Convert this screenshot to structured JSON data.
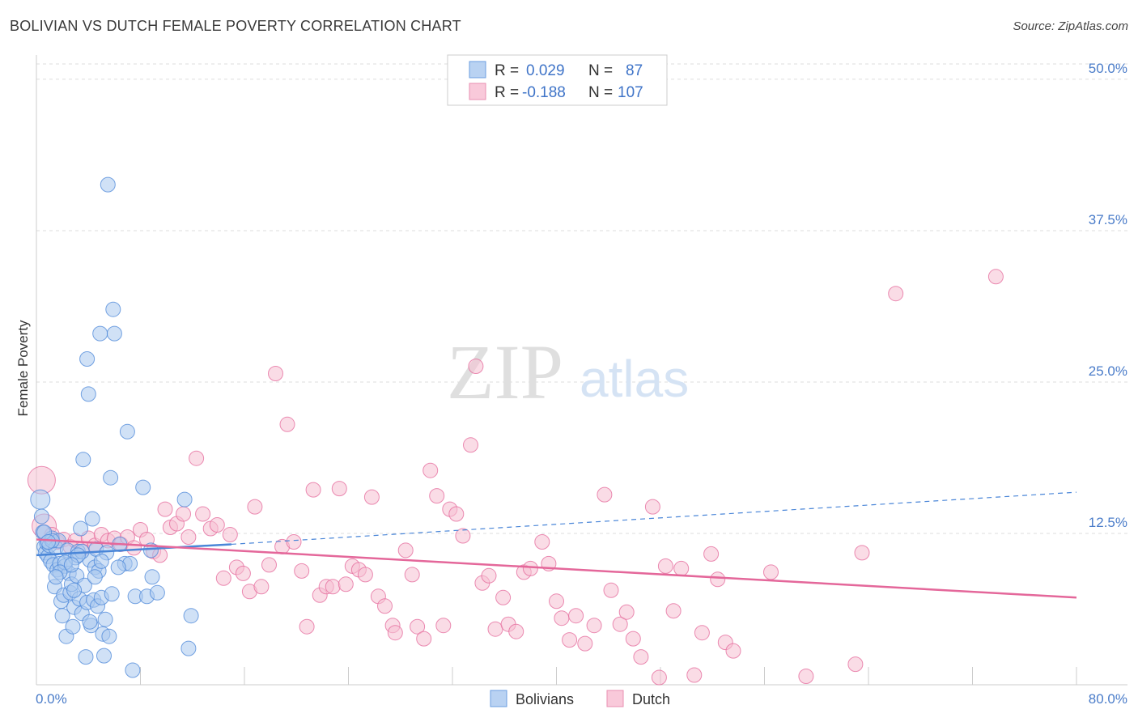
{
  "title": "BOLIVIAN VS DUTCH FEMALE POVERTY CORRELATION CHART",
  "source": "Source: ZipAtlas.com",
  "watermark": {
    "part1": "ZIP",
    "part2": "atlas"
  },
  "colors": {
    "bolivians": "#4a86d8",
    "bolivians_fill": "#a9c9ef",
    "dutch": "#e4679a",
    "dutch_fill": "#f6bfd2",
    "tick": "#4a7cc9",
    "grid": "#dddddd"
  },
  "legend": {
    "row1": {
      "r_label": "R =",
      "r_value": "0.029",
      "n_label": "N =",
      "n_value": "87"
    },
    "row2": {
      "r_label": "R =",
      "r_value": "-0.188",
      "n_label": "N =",
      "n_value": "107"
    }
  },
  "chart_data": {
    "type": "scatter",
    "title": "BOLIVIAN VS DUTCH FEMALE POVERTY CORRELATION CHART",
    "xlabel": "",
    "ylabel": "Female Poverty",
    "xlim": [
      0,
      80
    ],
    "ylim": [
      0,
      52
    ],
    "x_tick_labels": [
      "0.0%",
      "80.0%"
    ],
    "y_ticks": [
      12.5,
      25.0,
      37.5,
      50.0
    ],
    "y_tick_labels": [
      "12.5%",
      "25.0%",
      "37.5%",
      "50.0%"
    ],
    "grid": true,
    "legend_position": "top-center",
    "series": [
      {
        "name": "Bolivians",
        "r": 0.029,
        "n": 87,
        "trend": {
          "solid": [
            [
              0,
              10.7
            ],
            [
              15,
              11.6
            ]
          ],
          "dashed": [
            [
              15,
              11.6
            ],
            [
              80,
              15.9
            ]
          ]
        },
        "points": [
          [
            0.3,
            15.3
          ],
          [
            0.4,
            13.9
          ],
          [
            0.5,
            12.6
          ],
          [
            0.6,
            11.4
          ],
          [
            0.7,
            10.9
          ],
          [
            0.8,
            11.7
          ],
          [
            0.9,
            10.6
          ],
          [
            1.0,
            11.5
          ],
          [
            1.1,
            10.2
          ],
          [
            1.2,
            12.1
          ],
          [
            1.3,
            9.9
          ],
          [
            1.4,
            8.1
          ],
          [
            1.5,
            11.3
          ],
          [
            1.6,
            9.5
          ],
          [
            1.7,
            11.9
          ],
          [
            1.8,
            10.0
          ],
          [
            1.9,
            6.9
          ],
          [
            2.0,
            5.7
          ],
          [
            2.1,
            7.4
          ],
          [
            2.2,
            9.8
          ],
          [
            2.3,
            4.0
          ],
          [
            2.4,
            11.1
          ],
          [
            2.5,
            9.2
          ],
          [
            2.6,
            7.6
          ],
          [
            2.7,
            8.3
          ],
          [
            2.8,
            4.8
          ],
          [
            2.9,
            6.4
          ],
          [
            3.0,
            10.5
          ],
          [
            3.1,
            9.0
          ],
          [
            3.2,
            11.0
          ],
          [
            3.3,
            7.1
          ],
          [
            3.4,
            12.9
          ],
          [
            3.5,
            5.9
          ],
          [
            3.6,
            18.6
          ],
          [
            3.7,
            8.2
          ],
          [
            3.8,
            2.3
          ],
          [
            3.9,
            6.8
          ],
          [
            4.0,
            24.0
          ],
          [
            4.1,
            10.3
          ],
          [
            4.2,
            4.9
          ],
          [
            4.3,
            13.7
          ],
          [
            4.4,
            7.0
          ],
          [
            4.5,
            9.7
          ],
          [
            4.6,
            11.2
          ],
          [
            4.7,
            6.5
          ],
          [
            4.8,
            9.4
          ],
          [
            4.9,
            29.0
          ],
          [
            5.0,
            7.2
          ],
          [
            5.1,
            4.2
          ],
          [
            5.2,
            2.4
          ],
          [
            5.3,
            5.4
          ],
          [
            5.4,
            10.9
          ],
          [
            5.5,
            41.3
          ],
          [
            5.6,
            4.0
          ],
          [
            5.7,
            17.1
          ],
          [
            5.8,
            7.5
          ],
          [
            5.9,
            31.0
          ],
          [
            6.0,
            29.0
          ],
          [
            3.9,
            26.9
          ],
          [
            6.4,
            11.6
          ],
          [
            6.8,
            10.0
          ],
          [
            7.0,
            20.9
          ],
          [
            7.2,
            10.0
          ],
          [
            7.4,
            1.2
          ],
          [
            7.6,
            7.3
          ],
          [
            8.2,
            16.3
          ],
          [
            8.5,
            7.3
          ],
          [
            8.9,
            8.9
          ],
          [
            9.3,
            7.6
          ],
          [
            11.4,
            15.3
          ],
          [
            11.9,
            5.7
          ],
          [
            11.7,
            3.0
          ],
          [
            8.8,
            11.1
          ],
          [
            2.9,
            7.8
          ],
          [
            1.2,
            11.9
          ],
          [
            0.6,
            12.6
          ],
          [
            4.5,
            8.9
          ],
          [
            2.2,
            10.1
          ],
          [
            3.5,
            11.0
          ],
          [
            1.8,
            9.3
          ],
          [
            6.3,
            9.7
          ],
          [
            3.2,
            10.7
          ],
          [
            0.9,
            11.8
          ],
          [
            2.7,
            9.9
          ],
          [
            4.1,
            5.2
          ],
          [
            5.0,
            10.2
          ],
          [
            1.5,
            8.9
          ]
        ]
      },
      {
        "name": "Dutch",
        "r": -0.188,
        "n": 107,
        "trend": {
          "solid": [
            [
              0,
              12.0
            ],
            [
              80,
              7.2
            ]
          ]
        },
        "points": [
          [
            0.4,
            16.9
          ],
          [
            0.6,
            13.1
          ],
          [
            1.2,
            12.4
          ],
          [
            1.6,
            11.8
          ],
          [
            2.1,
            12.0
          ],
          [
            2.6,
            11.4
          ],
          [
            3.0,
            11.9
          ],
          [
            3.5,
            11.2
          ],
          [
            4.0,
            12.1
          ],
          [
            4.5,
            11.5
          ],
          [
            5.0,
            12.4
          ],
          [
            5.5,
            11.9
          ],
          [
            6.0,
            12.1
          ],
          [
            6.5,
            11.6
          ],
          [
            7.0,
            12.2
          ],
          [
            7.5,
            11.3
          ],
          [
            8.0,
            12.8
          ],
          [
            8.5,
            12.0
          ],
          [
            9.0,
            11.0
          ],
          [
            9.5,
            10.7
          ],
          [
            9.9,
            14.5
          ],
          [
            10.3,
            13.0
          ],
          [
            10.8,
            13.3
          ],
          [
            11.3,
            14.1
          ],
          [
            11.7,
            12.2
          ],
          [
            12.3,
            18.7
          ],
          [
            12.8,
            14.1
          ],
          [
            13.4,
            12.9
          ],
          [
            13.9,
            13.2
          ],
          [
            14.4,
            8.8
          ],
          [
            14.9,
            12.4
          ],
          [
            15.4,
            9.7
          ],
          [
            15.9,
            9.2
          ],
          [
            16.4,
            7.7
          ],
          [
            16.8,
            14.7
          ],
          [
            17.3,
            8.1
          ],
          [
            17.9,
            9.9
          ],
          [
            18.4,
            25.7
          ],
          [
            18.9,
            11.4
          ],
          [
            19.3,
            21.5
          ],
          [
            19.8,
            11.8
          ],
          [
            20.4,
            9.4
          ],
          [
            20.8,
            4.8
          ],
          [
            21.3,
            16.1
          ],
          [
            21.8,
            7.4
          ],
          [
            22.3,
            8.1
          ],
          [
            22.8,
            8.1
          ],
          [
            23.3,
            16.2
          ],
          [
            23.8,
            8.3
          ],
          [
            24.3,
            9.8
          ],
          [
            24.8,
            9.5
          ],
          [
            25.3,
            9.1
          ],
          [
            25.8,
            15.5
          ],
          [
            26.3,
            7.3
          ],
          [
            26.8,
            6.5
          ],
          [
            27.4,
            4.9
          ],
          [
            27.6,
            4.3
          ],
          [
            28.4,
            11.1
          ],
          [
            28.9,
            9.1
          ],
          [
            29.3,
            4.8
          ],
          [
            29.8,
            3.8
          ],
          [
            30.3,
            17.7
          ],
          [
            30.8,
            15.6
          ],
          [
            31.3,
            4.9
          ],
          [
            31.8,
            14.5
          ],
          [
            32.3,
            14.1
          ],
          [
            32.8,
            12.3
          ],
          [
            33.4,
            19.8
          ],
          [
            33.8,
            26.3
          ],
          [
            34.3,
            8.4
          ],
          [
            34.8,
            9.0
          ],
          [
            35.3,
            4.6
          ],
          [
            35.9,
            7.2
          ],
          [
            36.3,
            5.0
          ],
          [
            36.9,
            4.4
          ],
          [
            37.5,
            9.3
          ],
          [
            38.0,
            9.6
          ],
          [
            38.9,
            11.8
          ],
          [
            39.4,
            10.0
          ],
          [
            40.0,
            6.9
          ],
          [
            40.4,
            5.5
          ],
          [
            41.0,
            3.7
          ],
          [
            41.5,
            5.7
          ],
          [
            42.2,
            3.4
          ],
          [
            42.9,
            4.9
          ],
          [
            43.7,
            15.7
          ],
          [
            44.2,
            7.8
          ],
          [
            44.9,
            5.0
          ],
          [
            45.4,
            6.0
          ],
          [
            45.9,
            3.8
          ],
          [
            46.5,
            2.3
          ],
          [
            47.4,
            14.7
          ],
          [
            47.9,
            0.6
          ],
          [
            48.4,
            9.8
          ],
          [
            49.0,
            6.1
          ],
          [
            49.6,
            9.6
          ],
          [
            50.6,
            0.8
          ],
          [
            51.2,
            4.3
          ],
          [
            51.9,
            10.8
          ],
          [
            52.4,
            8.7
          ],
          [
            53.0,
            3.5
          ],
          [
            53.6,
            2.8
          ],
          [
            56.5,
            9.3
          ],
          [
            59.2,
            0.7
          ],
          [
            63.0,
            1.7
          ],
          [
            63.5,
            10.9
          ],
          [
            66.1,
            32.3
          ],
          [
            73.8,
            33.7
          ]
        ]
      }
    ]
  },
  "bottom_legend": {
    "item1": "Bolivians",
    "item2": "Dutch"
  }
}
